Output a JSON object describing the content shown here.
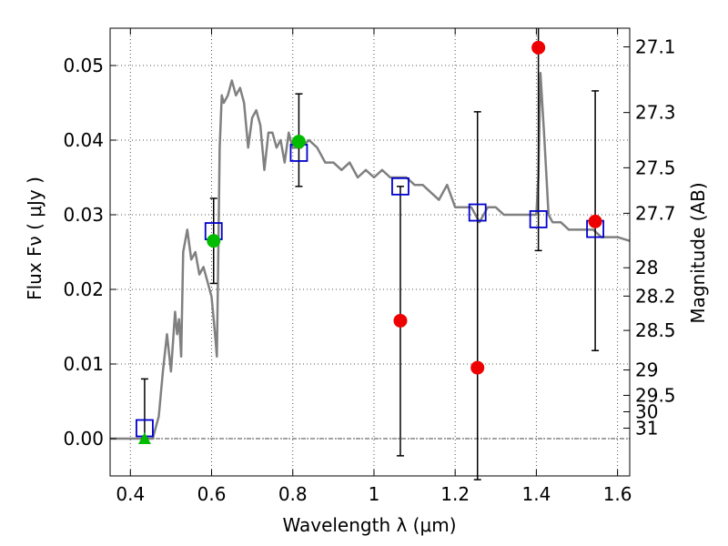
{
  "chart_data": {
    "type": "scatter",
    "xlabel": "Wavelength  λ (μm)",
    "ylabel": "Flux  Fν  ( μJy )",
    "y2label": "Magnitude (AB)",
    "xlim": [
      0.35,
      1.63
    ],
    "ylim": [
      -0.005,
      0.055
    ],
    "xticks": [
      0.4,
      0.6,
      0.8,
      1.0,
      1.2,
      1.4,
      1.6
    ],
    "xtick_labels": [
      "0.4",
      "0.6",
      "0.8",
      "1",
      "1.2",
      "1.4",
      "1.6"
    ],
    "yticks": [
      0.0,
      0.01,
      0.02,
      0.03,
      0.04,
      0.05
    ],
    "ytick_labels": [
      "0.00",
      "0.01",
      "0.02",
      "0.03",
      "0.04",
      "0.05"
    ],
    "y2ticks": [
      {
        "flux": 0.0525,
        "label": "27.1"
      },
      {
        "flux": 0.0437,
        "label": "27.3"
      },
      {
        "flux": 0.0363,
        "label": "27.5"
      },
      {
        "flux": 0.0302,
        "label": "27.7"
      },
      {
        "flux": 0.0229,
        "label": "28"
      },
      {
        "flux": 0.0191,
        "label": "28.2"
      },
      {
        "flux": 0.0145,
        "label": "28.5"
      },
      {
        "flux": 0.0092,
        "label": "29"
      },
      {
        "flux": 0.0058,
        "label": "29.5"
      },
      {
        "flux": 0.0036,
        "label": "30"
      },
      {
        "flux": 0.0014,
        "label": "31"
      }
    ],
    "grid": true,
    "colors": {
      "model": "#808080",
      "model_points": "#0000cc",
      "observed_red": "#ee0000",
      "observed_green": "#00bb00",
      "errorbar": "#000000"
    },
    "model_spectrum": {
      "x": [
        0.35,
        0.44,
        0.455,
        0.47,
        0.48,
        0.49,
        0.5,
        0.51,
        0.515,
        0.52,
        0.525,
        0.53,
        0.54,
        0.55,
        0.56,
        0.57,
        0.58,
        0.59,
        0.6,
        0.605,
        0.61,
        0.613,
        0.616,
        0.62,
        0.625,
        0.63,
        0.64,
        0.65,
        0.66,
        0.67,
        0.68,
        0.69,
        0.7,
        0.71,
        0.72,
        0.73,
        0.74,
        0.75,
        0.76,
        0.77,
        0.78,
        0.79,
        0.8,
        0.82,
        0.84,
        0.86,
        0.88,
        0.9,
        0.92,
        0.94,
        0.96,
        0.98,
        1.0,
        1.02,
        1.04,
        1.06,
        1.08,
        1.1,
        1.12,
        1.14,
        1.16,
        1.18,
        1.2,
        1.22,
        1.24,
        1.26,
        1.28,
        1.3,
        1.32,
        1.34,
        1.36,
        1.38,
        1.39,
        1.4,
        1.405,
        1.41,
        1.42,
        1.43,
        1.44,
        1.46,
        1.48,
        1.5,
        1.52,
        1.54,
        1.56,
        1.58,
        1.6,
        1.63
      ],
      "y": [
        0.0,
        0.0,
        0.0,
        0.003,
        0.009,
        0.014,
        0.009,
        0.017,
        0.014,
        0.016,
        0.011,
        0.025,
        0.028,
        0.024,
        0.025,
        0.022,
        0.023,
        0.021,
        0.019,
        0.016,
        0.013,
        0.011,
        0.023,
        0.039,
        0.046,
        0.045,
        0.046,
        0.048,
        0.046,
        0.047,
        0.045,
        0.039,
        0.043,
        0.044,
        0.042,
        0.036,
        0.041,
        0.041,
        0.039,
        0.04,
        0.037,
        0.041,
        0.039,
        0.039,
        0.04,
        0.039,
        0.037,
        0.037,
        0.036,
        0.037,
        0.035,
        0.036,
        0.035,
        0.036,
        0.035,
        0.035,
        0.035,
        0.034,
        0.034,
        0.033,
        0.032,
        0.034,
        0.031,
        0.031,
        0.031,
        0.029,
        0.031,
        0.031,
        0.03,
        0.03,
        0.03,
        0.03,
        0.03,
        0.03,
        0.035,
        0.049,
        0.04,
        0.03,
        0.029,
        0.029,
        0.028,
        0.028,
        0.028,
        0.028,
        0.027,
        0.027,
        0.027,
        0.0265
      ]
    },
    "model_points": [
      {
        "x": 0.435,
        "y": 0.0014
      },
      {
        "x": 0.605,
        "y": 0.0278
      },
      {
        "x": 0.815,
        "y": 0.0383
      },
      {
        "x": 1.065,
        "y": 0.0338
      },
      {
        "x": 1.255,
        "y": 0.0303
      },
      {
        "x": 1.405,
        "y": 0.0294
      },
      {
        "x": 1.545,
        "y": 0.0281
      }
    ],
    "observed": [
      {
        "x": 0.435,
        "y": 0.0,
        "err_low": 0.0,
        "err_high": 0.008,
        "marker": "triangle",
        "color": "green"
      },
      {
        "x": 0.605,
        "y": 0.0265,
        "err_low": 0.0208,
        "err_high": 0.0322,
        "marker": "circle",
        "color": "green"
      },
      {
        "x": 0.815,
        "y": 0.0398,
        "err_low": 0.0338,
        "err_high": 0.0462,
        "marker": "circle",
        "color": "green"
      },
      {
        "x": 1.065,
        "y": 0.0158,
        "err_low": -0.0023,
        "err_high": 0.0338,
        "marker": "circle",
        "color": "red"
      },
      {
        "x": 1.255,
        "y": 0.0095,
        "err_low": -0.0055,
        "err_high": 0.0438,
        "marker": "circle",
        "color": "red"
      },
      {
        "x": 1.405,
        "y": 0.0524,
        "err_low": 0.0252,
        "err_high": 0.055,
        "marker": "circle",
        "color": "red"
      },
      {
        "x": 1.545,
        "y": 0.0291,
        "err_low": 0.0118,
        "err_high": 0.0466,
        "marker": "circle",
        "color": "red"
      }
    ]
  }
}
